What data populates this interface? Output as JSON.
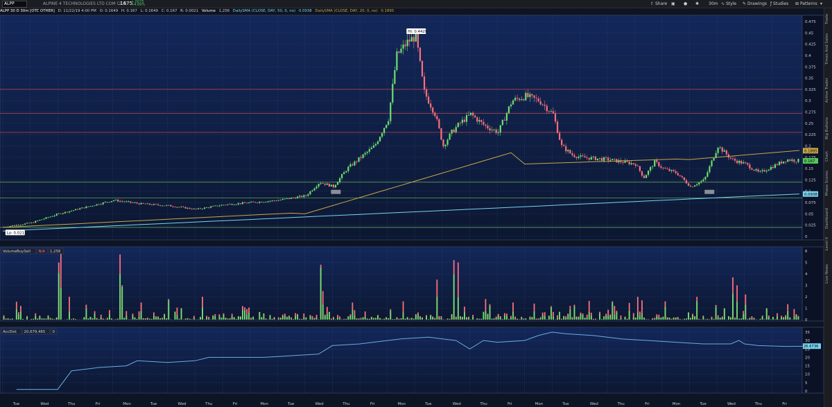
{
  "toolbar": {
    "symbol": "ALPP",
    "company": "ALPINE 4 TECHNOLOGIES LTD COM CL A",
    "price": ".1675",
    "change": "+.0075",
    "change_pct": "+4.69%",
    "share": "Share",
    "timeframe": "30m",
    "style": "Style",
    "drawings": "Drawings",
    "studies": "Studies",
    "patterns": "Patterns"
  },
  "infobar": {
    "title": "ALPP 30 D 30m [OTC OTHER]",
    "date": "D: 11/22/19 4:00 PM",
    "open": "O: 0.1649",
    "high": "H: 0.167",
    "low": "L: 0.1649",
    "close": "C: 0.167",
    "rng": "R: 0.0021",
    "volume_label": "Volume",
    "volume_value": "1,256",
    "sma50_label": "DailySMA (CLOSE, DAY, 50, 0, no)",
    "sma50_value": "0.0938",
    "sma20_label": "DailySMA (CLOSE, DAY, 20, 0, no)",
    "sma20_value": "0.1895"
  },
  "right_sidebar": [
    "Trade",
    "Times And Sales",
    "Active Trader",
    "Big Buttons",
    "Chart",
    "Phase Scores",
    "Dashboard",
    "Level II",
    "Live News"
  ],
  "colors": {
    "bg": "#0f1a33",
    "up": "#6ee06e",
    "down": "#ff6f7d",
    "sma50": "#78d4f0",
    "sma20": "#c9a84a",
    "hline_red": "#c2464f",
    "hline_green": "#5ea25e",
    "acc_line": "#69aee0"
  },
  "chart_data": [
    {
      "type": "candlestick",
      "title": "ALPP 30 D 30m [OTC OTHER]",
      "x_labels": [
        "Tue",
        "Wed",
        "Thu",
        "Fri",
        "Mon",
        "Tue",
        "Wed",
        "Thu",
        "Fri",
        "Mon",
        "Tue",
        "Wed",
        "Thu",
        "Fri",
        "Mon",
        "Tue",
        "Wed",
        "Thu",
        "Fri",
        "Mon",
        "Tue",
        "Wed",
        "Thu",
        "Fri",
        "Mon",
        "Tue",
        "Wed",
        "Thu",
        "Fri"
      ],
      "ylim": [
        0,
        0.475
      ],
      "y_ticks": [
        "0.475",
        "0.45",
        "0.425",
        "0.4",
        "0.375",
        "0.35",
        "0.325",
        "0.3",
        "0.275",
        "0.25",
        "0.225",
        "0.2",
        "0.175",
        "0.15",
        "0.125",
        "0.1",
        "0.075",
        "0.05",
        "0.025",
        "0"
      ],
      "price_path": [
        [
          0,
          0.021
        ],
        [
          1,
          0.03
        ],
        [
          2,
          0.05
        ],
        [
          3,
          0.065
        ],
        [
          4,
          0.08
        ],
        [
          5,
          0.072
        ],
        [
          6,
          0.068
        ],
        [
          7,
          0.06
        ],
        [
          8,
          0.07
        ],
        [
          9,
          0.075
        ],
        [
          10,
          0.08
        ],
        [
          11,
          0.09
        ],
        [
          11.5,
          0.12
        ],
        [
          12,
          0.11
        ],
        [
          12.5,
          0.15
        ],
        [
          13,
          0.175
        ],
        [
          13.5,
          0.2
        ],
        [
          14,
          0.26
        ],
        [
          14.3,
          0.4
        ],
        [
          14.7,
          0.43
        ],
        [
          15,
          0.4429
        ],
        [
          15.3,
          0.32
        ],
        [
          15.7,
          0.27
        ],
        [
          16,
          0.2
        ],
        [
          16.3,
          0.23
        ],
        [
          16.6,
          0.25
        ],
        [
          17,
          0.27
        ],
        [
          17.5,
          0.245
        ],
        [
          18,
          0.23
        ],
        [
          18.5,
          0.3
        ],
        [
          19,
          0.31
        ],
        [
          19.5,
          0.3
        ],
        [
          20,
          0.27
        ],
        [
          20.3,
          0.2
        ],
        [
          20.7,
          0.18
        ],
        [
          21,
          0.175
        ],
        [
          22,
          0.17
        ],
        [
          23,
          0.16
        ],
        [
          23.3,
          0.13
        ],
        [
          23.7,
          0.165
        ],
        [
          24,
          0.15
        ],
        [
          24.5,
          0.14
        ],
        [
          25,
          0.11
        ],
        [
          25.5,
          0.125
        ],
        [
          26,
          0.2
        ],
        [
          26.5,
          0.17
        ],
        [
          27,
          0.16
        ],
        [
          27.5,
          0.14
        ],
        [
          28,
          0.155
        ],
        [
          28.5,
          0.17
        ],
        [
          29,
          0.167
        ]
      ],
      "annotations": {
        "high": "Hi: 0.4429",
        "low": "Lo: 0.021"
      },
      "markers": {
        "sma20": "0.1895",
        "last": "0.167",
        "sma50": "0.0938"
      },
      "horizontal_levels": {
        "red": [
          0.325,
          0.272,
          0.23
        ],
        "green": [
          0.12,
          0.085,
          0.02
        ]
      },
      "sma": [
        {
          "name": "DailySMA (CLOSE, DAY, 50, 0, no)",
          "value": 0.0938
        },
        {
          "name": "DailySMA (CLOSE, DAY, 20, 0, no)",
          "value": 0.1895
        }
      ]
    },
    {
      "type": "bar",
      "title": "VolumeBuySell",
      "labels": [
        "VolumeBuySell",
        "N/A",
        "1,256"
      ],
      "ylim": [
        0,
        6
      ],
      "y_ticks": [
        "6",
        "5",
        "4",
        "3",
        "2",
        "1",
        "0"
      ],
      "spikes": [
        [
          0.6,
          1.2
        ],
        [
          2.0,
          5.0
        ],
        [
          2.1,
          5.8
        ],
        [
          2.4,
          2.0
        ],
        [
          4.2,
          5.7
        ],
        [
          4.3,
          3.0
        ],
        [
          5.0,
          1.5
        ],
        [
          6.0,
          1.8
        ],
        [
          7.2,
          2.0
        ],
        [
          11.5,
          4.8
        ],
        [
          11.6,
          2.5
        ],
        [
          12.7,
          1.5
        ],
        [
          14.5,
          1.6
        ],
        [
          15.8,
          3.5
        ],
        [
          16.4,
          5.2
        ],
        [
          16.5,
          5.0
        ],
        [
          17.5,
          1.8
        ],
        [
          18.5,
          1.5
        ],
        [
          19.3,
          1.4
        ],
        [
          20.8,
          1.3
        ],
        [
          22.2,
          1.2
        ],
        [
          23.1,
          2.0
        ],
        [
          24.1,
          1.6
        ],
        [
          25.2,
          2.0
        ],
        [
          26.5,
          3.7
        ],
        [
          26.7,
          3.0
        ],
        [
          27.0,
          2.2
        ],
        [
          27.8,
          1.0
        ]
      ]
    },
    {
      "type": "line",
      "title": "AccDist",
      "labels": [
        "AccDist",
        "20,679,465",
        "0"
      ],
      "ylim": [
        0,
        35
      ],
      "y_ticks": [
        "35",
        "30",
        "25",
        "20",
        "15",
        "10",
        "5",
        "0"
      ],
      "last_value": "26.6736",
      "values": [
        [
          0,
          1
        ],
        [
          1.5,
          1
        ],
        [
          2,
          12
        ],
        [
          3,
          14
        ],
        [
          4,
          15
        ],
        [
          4.4,
          18
        ],
        [
          5.5,
          17
        ],
        [
          6.5,
          18
        ],
        [
          7,
          20
        ],
        [
          9,
          20
        ],
        [
          10,
          21
        ],
        [
          11,
          22
        ],
        [
          11.5,
          27
        ],
        [
          12.5,
          28
        ],
        [
          13.5,
          30
        ],
        [
          14,
          31
        ],
        [
          15,
          32
        ],
        [
          15.5,
          31
        ],
        [
          16,
          30
        ],
        [
          16.5,
          25
        ],
        [
          17,
          30
        ],
        [
          17.5,
          29
        ],
        [
          18.5,
          30
        ],
        [
          19,
          33
        ],
        [
          19.5,
          35
        ],
        [
          20,
          34
        ],
        [
          21,
          33
        ],
        [
          22,
          31
        ],
        [
          23,
          30
        ],
        [
          24,
          29
        ],
        [
          25,
          28
        ],
        [
          26,
          28
        ],
        [
          26.3,
          30
        ],
        [
          26.5,
          28
        ],
        [
          27,
          27
        ],
        [
          28,
          26.5
        ],
        [
          29,
          26.7
        ]
      ]
    }
  ]
}
